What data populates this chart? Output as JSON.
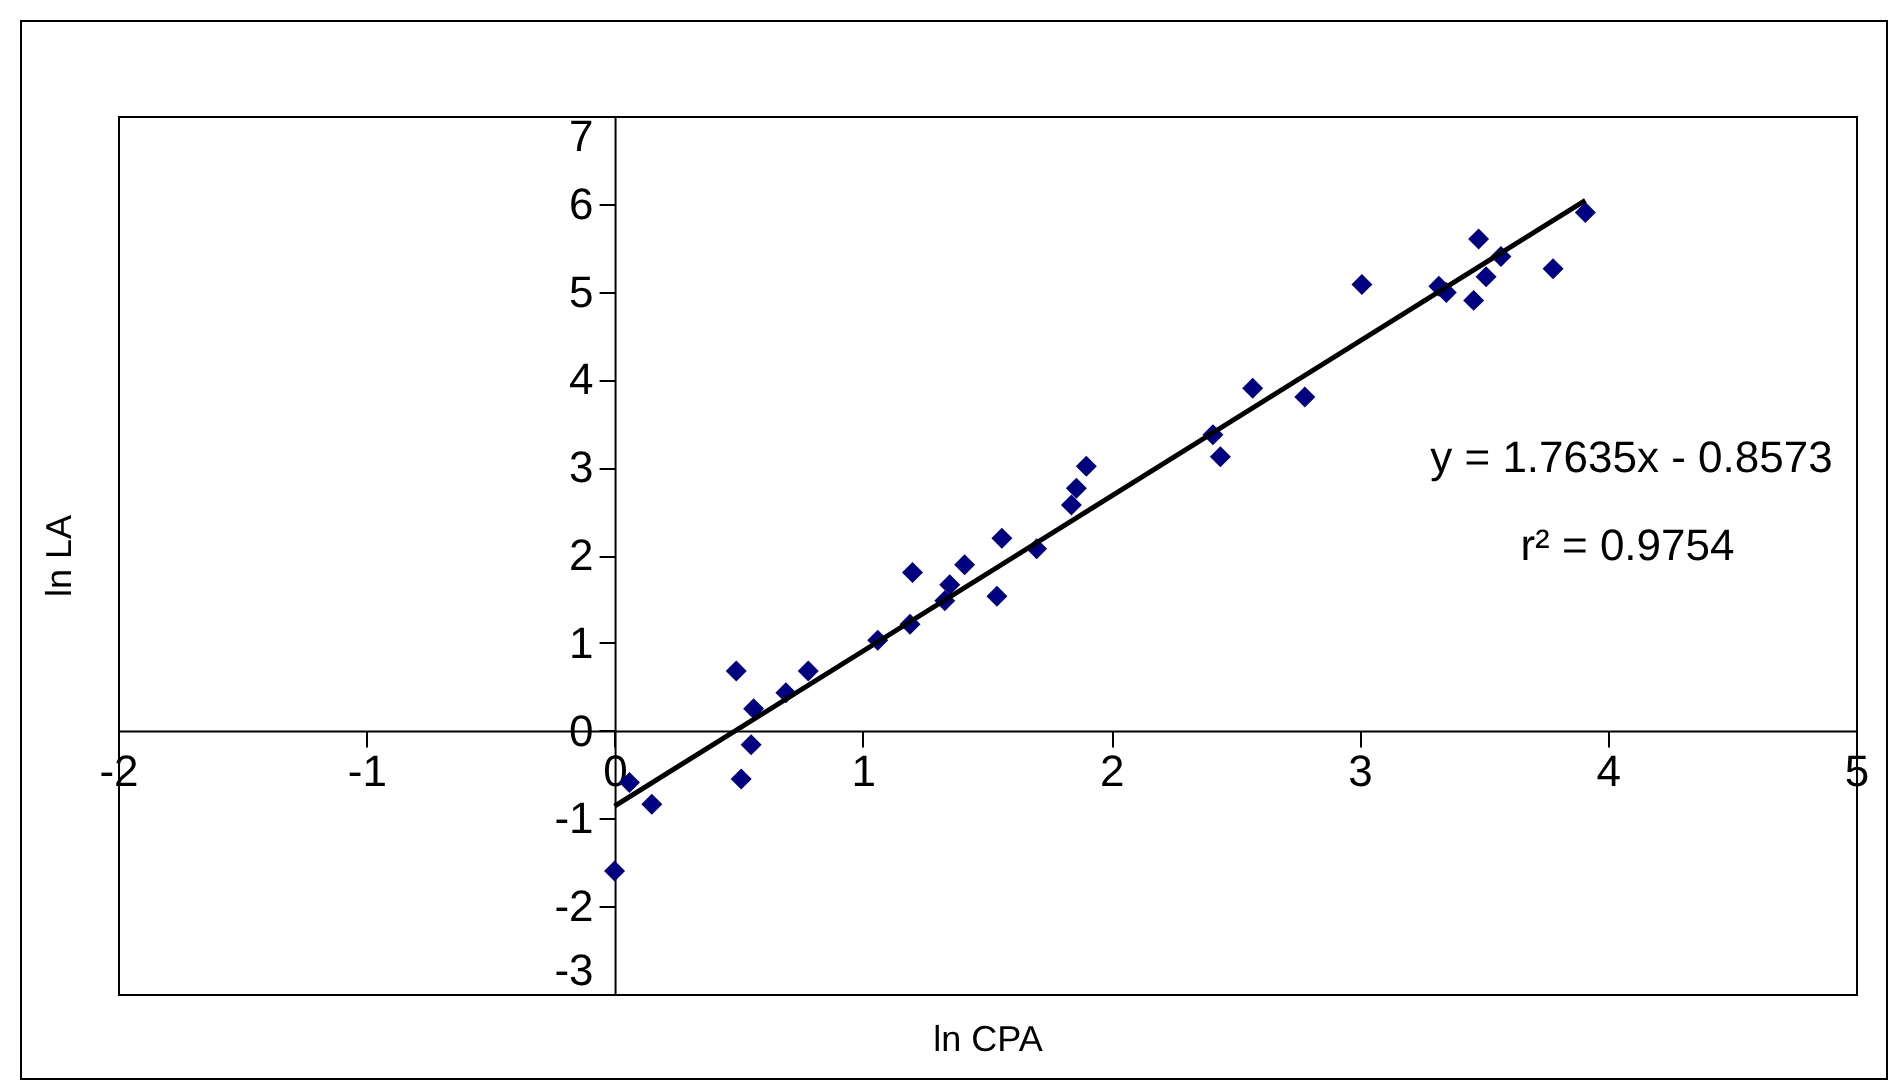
{
  "chart_data": {
    "type": "scatter",
    "xlabel": "ln CPA",
    "ylabel": "ln LA",
    "xlim": [
      -2,
      5
    ],
    "ylim": [
      -3,
      7
    ],
    "xticks": [
      -2,
      -1,
      0,
      1,
      2,
      3,
      4,
      5
    ],
    "yticks": [
      -3,
      -2,
      -1,
      0,
      1,
      2,
      3,
      4,
      5,
      6,
      7
    ],
    "grid": false,
    "marker": "diamond",
    "annotations": [
      "y = 1.7635x - 0.8573",
      "r² = 0.9754"
    ],
    "series": [
      {
        "color": "#000080",
        "x": [
          0.0,
          0.06,
          0.15,
          0.49,
          0.51,
          0.55,
          0.56,
          0.69,
          0.78,
          1.06,
          1.19,
          1.2,
          1.33,
          1.35,
          1.41,
          1.54,
          1.56,
          1.7,
          1.84,
          1.86,
          1.9,
          2.41,
          2.44,
          2.57,
          2.78,
          3.01,
          3.32,
          3.35,
          3.46,
          3.48,
          3.51,
          3.57,
          3.78,
          3.91
        ],
        "values": [
          -1.6,
          -0.59,
          -0.84,
          0.68,
          -0.55,
          -0.16,
          0.25,
          0.43,
          0.68,
          1.03,
          1.21,
          1.8,
          1.48,
          1.66,
          1.89,
          1.53,
          2.19,
          2.07,
          2.57,
          2.76,
          3.01,
          3.37,
          3.12,
          3.9,
          3.8,
          5.08,
          5.06,
          4.99,
          4.9,
          5.6,
          5.17,
          5.4,
          5.26,
          5.9
        ]
      },
      {
        "type": "line",
        "marker": "none",
        "color": "#000000",
        "x": [
          0,
          3.91
        ],
        "values": [
          -0.86,
          6.04
        ]
      }
    ]
  }
}
